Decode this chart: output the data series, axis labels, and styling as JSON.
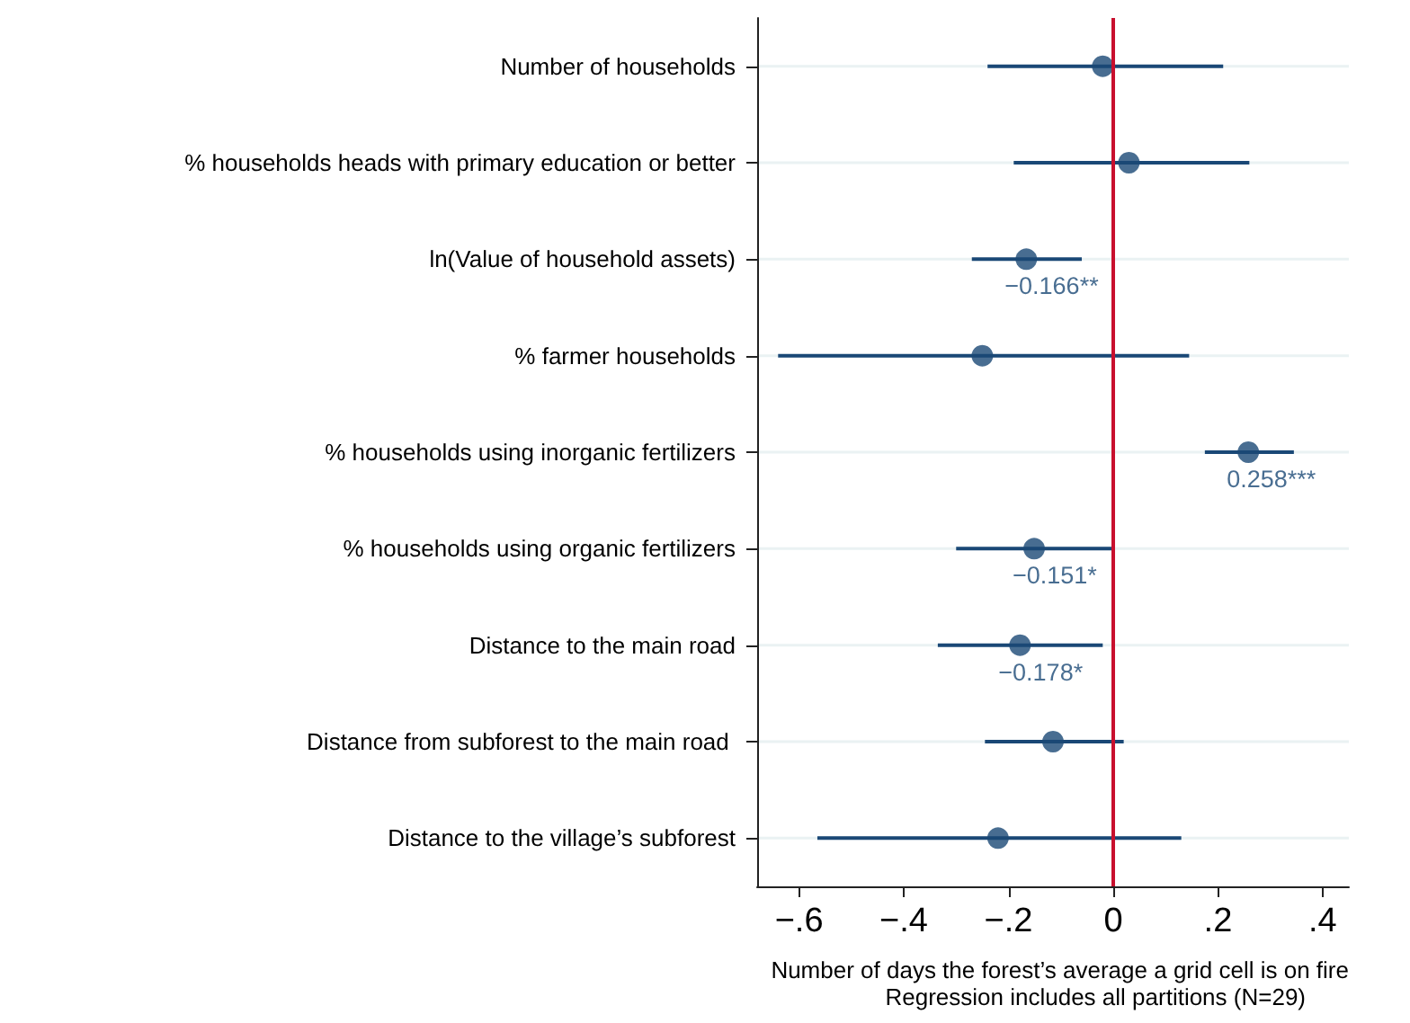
{
  "chart_data": {
    "type": "scatter",
    "orientation": "horizontal",
    "categories": [
      "Number of households",
      "% households heads with primary education or better",
      "ln(Value of household assets)",
      "% farmer households",
      "% households using inorganic fertilizers",
      "% households using organic fertilizers",
      "Distance to the main road",
      "Distance from subforest to the main road ",
      "Distance to the village’s subforest"
    ],
    "series": [
      {
        "color": "#1a4876",
        "values": [
          -0.02,
          0.03,
          -0.166,
          -0.25,
          0.258,
          -0.151,
          -0.178,
          -0.115,
          -0.22
        ],
        "errors": [
          [
            -0.24,
            0.21
          ],
          [
            -0.19,
            0.26
          ],
          [
            -0.27,
            -0.06
          ],
          [
            -0.64,
            0.145
          ],
          [
            0.175,
            0.345
          ],
          [
            -0.3,
            0
          ],
          [
            -0.335,
            -0.02
          ],
          [
            -0.245,
            0.02
          ],
          [
            -0.565,
            0.13
          ]
        ],
        "value_labels": [
          null,
          null,
          "−0.166**",
          null,
          "0.258***",
          "−0.151*",
          "−0.178*",
          null,
          null
        ]
      }
    ],
    "xlim": [
      -0.68,
      0.45
    ],
    "xticks": [
      {
        "value": -0.6,
        "label": "−.6"
      },
      {
        "value": -0.4,
        "label": "−.4"
      },
      {
        "value": -0.2,
        "label": "−.2"
      },
      0,
      {
        "value": 0.2,
        "label": ".2"
      },
      {
        "value": 0.4,
        "label": ".4"
      }
    ],
    "xlabel": "Number of days the forest’s average a grid cell is on fire",
    "annotations": [
      "Regression includes all partitions (N=29)"
    ],
    "ref_lines": [
      {
        "axis": "x",
        "value": 0,
        "color": "#c8102e"
      }
    ],
    "grid": "y",
    "marker": "circle"
  }
}
